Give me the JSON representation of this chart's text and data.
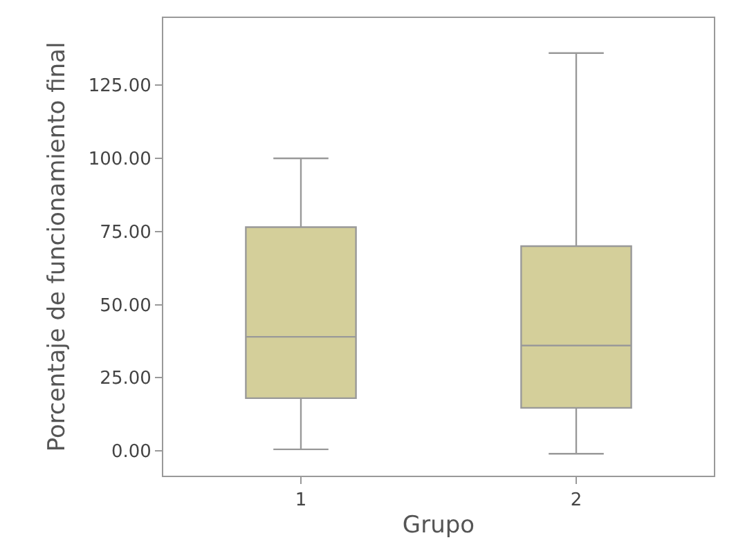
{
  "chart_data": {
    "type": "box",
    "xlabel": "Grupo",
    "ylabel": "Porcentaje de funcionamiento final",
    "categories": [
      "1",
      "2"
    ],
    "series": [
      {
        "color": "#d4cf9a",
        "boxes": [
          {
            "low": 0.5,
            "q1": 18,
            "median": 39,
            "q3": 76.5,
            "high": 100
          },
          {
            "low": -1,
            "q1": 14.7,
            "median": 36,
            "q3": 70,
            "high": 136
          }
        ]
      }
    ],
    "ylim": [
      -8.5,
      148
    ],
    "yticks": [
      {
        "value": 0,
        "label": "0.00"
      },
      {
        "value": 25,
        "label": "25.00"
      },
      {
        "value": 50,
        "label": "50.00"
      },
      {
        "value": 75,
        "label": "75.00"
      },
      {
        "value": 100,
        "label": "100.00"
      },
      {
        "value": 125,
        "label": "125.00"
      }
    ],
    "grid": false
  }
}
